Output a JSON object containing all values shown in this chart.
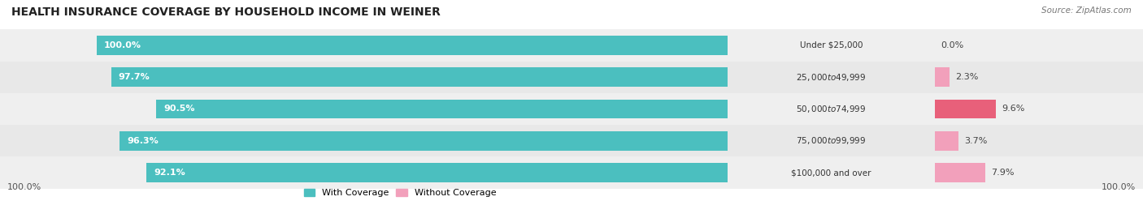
{
  "title": "HEALTH INSURANCE COVERAGE BY HOUSEHOLD INCOME IN WEINER",
  "source": "Source: ZipAtlas.com",
  "categories": [
    "Under $25,000",
    "$25,000 to $49,999",
    "$50,000 to $74,999",
    "$75,000 to $99,999",
    "$100,000 and over"
  ],
  "with_coverage": [
    100.0,
    97.7,
    90.5,
    96.3,
    92.1
  ],
  "without_coverage": [
    0.0,
    2.3,
    9.6,
    3.7,
    7.9
  ],
  "color_with": "#4BBFBF",
  "color_without": "#F2A0BB",
  "color_without_dark": "#E8607A",
  "title_fontsize": 10,
  "label_fontsize": 8,
  "bar_height": 0.6,
  "legend_label_with": "With Coverage",
  "legend_label_without": "Without Coverage",
  "axis_label_left": "100.0%",
  "axis_label_right": "100.0%",
  "row_colors": [
    "#EFEFEF",
    "#E8E8E8",
    "#EFEFEF",
    "#E8E8E8",
    "#EFEFEF"
  ]
}
